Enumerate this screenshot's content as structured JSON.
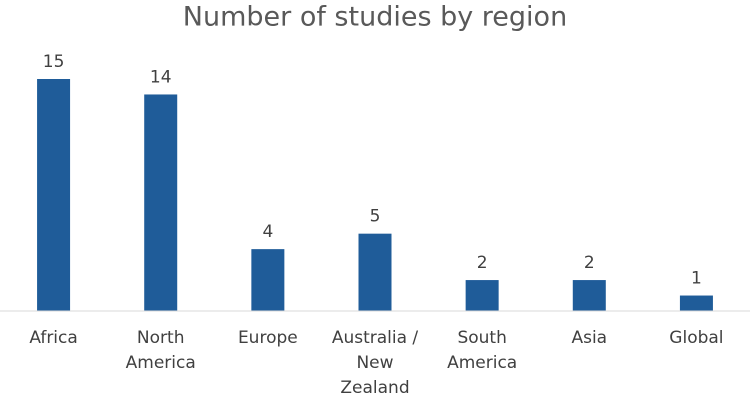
{
  "chart_data": {
    "type": "bar",
    "title": "Number of studies by region",
    "categories": [
      "Africa",
      "North America",
      "Europe",
      "Australia / New Zealand",
      "South America",
      "Asia",
      "Global"
    ],
    "values": [
      15,
      14,
      4,
      5,
      2,
      2,
      1
    ],
    "color": "#1f5c99"
  }
}
